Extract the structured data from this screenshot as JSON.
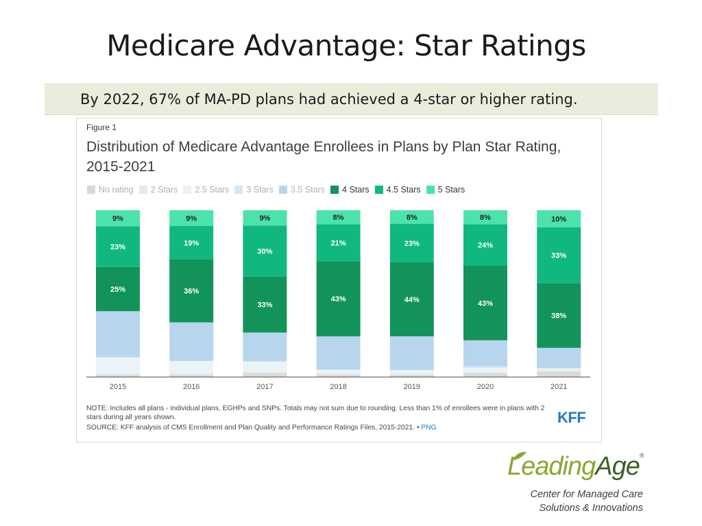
{
  "slide": {
    "title": "Medicare Advantage: Star Ratings",
    "subtitle": "By 2022, 67% of MA-PD plans had achieved a 4-star or higher rating."
  },
  "figure": {
    "label": "Figure 1",
    "title": "Distribution of Medicare Advantage Enrollees in Plans by Plan Star Rating, 2015-2021",
    "note": "NOTE: Includes all plans - individual plans, EGHPs and SNPs. Totals may not sum due to rounding. Less than 1% of enrollees were in plans with 2 stars during all years shown.",
    "source": "SOURCE: KFF analysis of CMS Enrollment and Plan Quality and Performance Ratings Files, 2015-2021. •",
    "source_link": "PNG",
    "kff_logo": "KFF"
  },
  "legend": [
    {
      "label": "No rating",
      "color": "#d9d9d9",
      "faded": true
    },
    {
      "label": "2 Stars",
      "color": "#e9e9e9",
      "faded": true
    },
    {
      "label": "2.5 Stars",
      "color": "#eaf3f8",
      "faded": true
    },
    {
      "label": "3 Stars",
      "color": "#d4e7f4",
      "faded": true
    },
    {
      "label": "3.5 Stars",
      "color": "#b7d6ee",
      "faded": true
    },
    {
      "label": "4 Stars",
      "color": "#12935a",
      "faded": false
    },
    {
      "label": "4.5 Stars",
      "color": "#10b87f",
      "faded": false
    },
    {
      "label": "5 Stars",
      "color": "#4ce3ab",
      "faded": false
    }
  ],
  "chart_data": {
    "type": "bar",
    "stacked": true,
    "title": "Distribution of Medicare Advantage Enrollees in Plans by Plan Star Rating, 2015-2021",
    "categories": [
      "2015",
      "2016",
      "2017",
      "2018",
      "2019",
      "2020",
      "2021"
    ],
    "ylim": [
      0,
      100
    ],
    "series": [
      {
        "name": "No rating",
        "color": "#d9d9d9",
        "values": [
          1,
          1,
          2,
          1,
          1,
          2,
          3
        ],
        "labels": [
          "",
          "",
          "",
          "",
          "",
          "",
          ""
        ]
      },
      {
        "name": "2 Stars",
        "color": "#e9e9e9",
        "values": [
          1,
          1,
          1,
          1,
          1,
          1,
          1
        ],
        "labels": [
          "",
          "",
          "",
          "",
          "",
          "",
          ""
        ]
      },
      {
        "name": "2.5 Stars",
        "color": "#eaf3f8",
        "values": [
          9,
          7,
          6,
          2,
          2,
          2,
          1
        ],
        "labels": [
          "",
          "",
          "",
          "",
          "",
          "",
          ""
        ]
      },
      {
        "name": "3 Stars",
        "color": "#d4e7f4",
        "values": [
          0,
          0,
          0,
          0,
          0,
          1,
          0
        ],
        "labels": [
          "",
          "",
          "",
          "",
          "",
          "",
          ""
        ]
      },
      {
        "name": "3.5 Stars",
        "color": "#b7d6ee",
        "values": [
          26,
          22,
          17,
          19,
          20,
          15,
          12
        ],
        "labels": [
          "",
          "",
          "",
          "",
          "",
          "",
          ""
        ]
      },
      {
        "name": "4 Stars",
        "color": "#12935a",
        "values": [
          25,
          36,
          33,
          43,
          44,
          43,
          38
        ],
        "labels": [
          "25%",
          "36%",
          "33%",
          "43%",
          "44%",
          "43%",
          "38%"
        ]
      },
      {
        "name": "4.5 Stars",
        "color": "#10b87f",
        "values": [
          23,
          19,
          30,
          21,
          23,
          24,
          33
        ],
        "labels": [
          "23%",
          "19%",
          "30%",
          "21%",
          "23%",
          "24%",
          "33%"
        ]
      },
      {
        "name": "5 Stars",
        "color": "#4ce3ab",
        "values": [
          9,
          9,
          9,
          8,
          8,
          8,
          10
        ],
        "labels": [
          "9%",
          "9%",
          "9%",
          "8%",
          "8%",
          "8%",
          "10%"
        ]
      }
    ]
  },
  "logo": {
    "word_a": "Leading",
    "word_b": "Age",
    "registered": "®",
    "tagline_1": "Center for Managed Care",
    "tagline_2": "Solutions & Innovations"
  }
}
